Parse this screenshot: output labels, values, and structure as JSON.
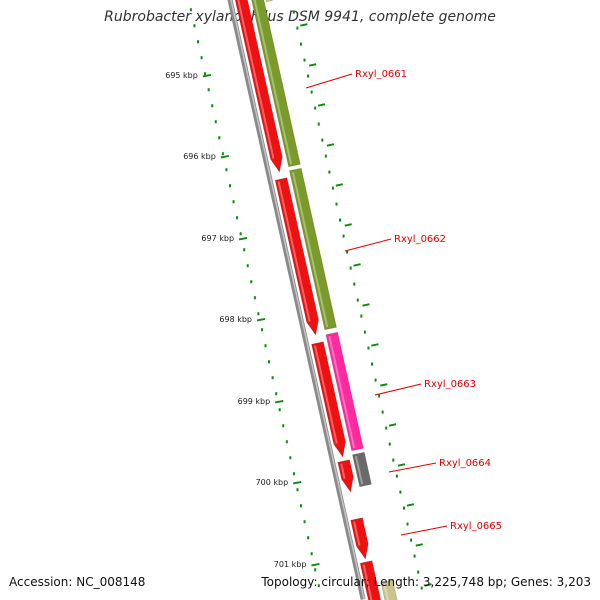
{
  "title": "Rubrobacter xylanophilus DSM 9941, complete genome",
  "accession": "Accession: NC_008148",
  "topology": "Topology: circular; Length: 3,225,748 bp; Genes: 3,203",
  "colors": {
    "background": "#ffffff",
    "backbone": "#8a8a8a",
    "tick": "#118811",
    "gene_forward": "#ee1111",
    "gene_reverse_olive": "#7a9a2a",
    "gene_reverse_magenta": "#ff2aa0",
    "gene_reverse_gray": "#6a6a6a",
    "gene_reverse_khaki": "#c8c48a",
    "label": "#e00000"
  },
  "ticks": [
    {
      "label": "695 kbp"
    },
    {
      "label": "696 kbp"
    },
    {
      "label": "697 kbp"
    },
    {
      "label": "698 kbp"
    },
    {
      "label": "699 kbp"
    },
    {
      "label": "700 kbp"
    },
    {
      "label": "701 kbp"
    }
  ],
  "gene_labels": [
    {
      "id": "rxyl-0661",
      "text": "Rxyl_0661"
    },
    {
      "id": "rxyl-0662",
      "text": "Rxyl_0662"
    },
    {
      "id": "rxyl-0663",
      "text": "Rxyl_0663"
    },
    {
      "id": "rxyl-0664",
      "text": "Rxyl_0664"
    },
    {
      "id": "rxyl-0665",
      "text": "Rxyl_0665"
    }
  ]
}
